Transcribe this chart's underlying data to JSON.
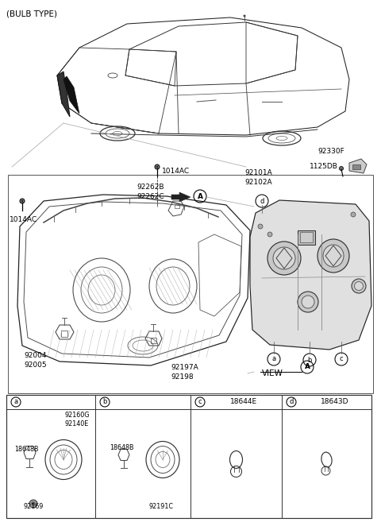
{
  "title": "(BULB TYPE)",
  "bg_color": "#ffffff",
  "text_color": "#000000",
  "fig_width": 4.8,
  "fig_height": 6.57,
  "dpi": 100,
  "col_divs": [
    8,
    120,
    240,
    355,
    468
  ],
  "cell_ids": [
    "a",
    "b",
    "c",
    "d"
  ],
  "cell_nums": [
    "",
    "",
    "18644E",
    "18643D"
  ],
  "labels_top": [
    "1014AC",
    "92101A\n92102A",
    "92330F",
    "1125DB"
  ],
  "labels_main": [
    "1014AC",
    "92262B\n92262C",
    "92004\n92005",
    "92197A\n92198"
  ],
  "label_view": "VIEW",
  "cell_a_parts": [
    "92160G\n92140E",
    "18648B",
    "92169"
  ],
  "cell_b_parts": [
    "18648B",
    "92191C"
  ]
}
